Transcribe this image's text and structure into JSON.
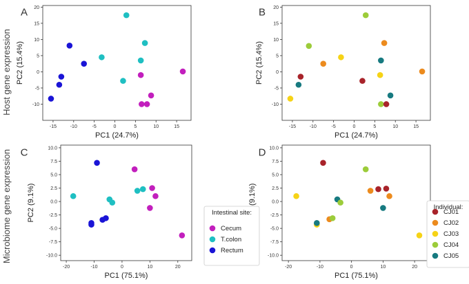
{
  "row_labels": [
    "Host gene expression",
    "Microbiome gene expression"
  ],
  "legends": {
    "site": {
      "title": "Intestinal site:",
      "entries": [
        {
          "name": "Cecum",
          "color": "#c21fbd"
        },
        {
          "name": "T.colon",
          "color": "#1fbfc2"
        },
        {
          "name": "Rectum",
          "color": "#1a14d6"
        }
      ]
    },
    "individual": {
      "title": "Individual:",
      "entries": [
        {
          "name": "CJ01",
          "color": "#a8232a"
        },
        {
          "name": "CJ02",
          "color": "#ec8b1e"
        },
        {
          "name": "CJ03",
          "color": "#f6d316"
        },
        {
          "name": "CJ04",
          "color": "#9ccc3a"
        },
        {
          "name": "CJ05",
          "color": "#177a80"
        }
      ]
    }
  },
  "chart_data": [
    {
      "panel": "A",
      "type": "scatter",
      "color_by": "site",
      "xlabel": "PC1 (24.7%)",
      "ylabel": "PC2 (15.4%)",
      "xlim": [
        -17.5,
        18.5
      ],
      "ylim": [
        -15,
        20.5
      ],
      "xticks": [
        -15,
        -10,
        -5,
        0,
        5,
        10,
        15
      ],
      "yticks": [
        -10,
        -5,
        0,
        5,
        10,
        15,
        20
      ],
      "points": [
        {
          "x": 2.8,
          "y": 17.5,
          "g": "T.colon"
        },
        {
          "x": 7.3,
          "y": 8.9,
          "g": "T.colon"
        },
        {
          "x": -3.2,
          "y": 4.5,
          "g": "T.colon"
        },
        {
          "x": 6.3,
          "y": 3.5,
          "g": "T.colon"
        },
        {
          "x": 2.0,
          "y": -2.8,
          "g": "T.colon"
        },
        {
          "x": -11.0,
          "y": 8.1,
          "g": "Rectum"
        },
        {
          "x": -7.5,
          "y": 2.5,
          "g": "Rectum"
        },
        {
          "x": -13.0,
          "y": -1.5,
          "g": "Rectum"
        },
        {
          "x": -13.5,
          "y": -4.0,
          "g": "Rectum"
        },
        {
          "x": -15.5,
          "y": -8.3,
          "g": "Rectum"
        },
        {
          "x": 16.5,
          "y": 0.1,
          "g": "Cecum"
        },
        {
          "x": 6.3,
          "y": -1.0,
          "g": "Cecum"
        },
        {
          "x": 8.8,
          "y": -7.3,
          "g": "Cecum"
        },
        {
          "x": 6.5,
          "y": -10.0,
          "g": "Cecum"
        },
        {
          "x": 7.8,
          "y": -10.0,
          "g": "Cecum"
        }
      ]
    },
    {
      "panel": "B",
      "type": "scatter",
      "color_by": "individual",
      "xlabel": "PC1 (24.7%)",
      "ylabel": "PC2 (15.4%)",
      "xlim": [
        -17.5,
        18.5
      ],
      "ylim": [
        -15,
        20.5
      ],
      "xticks": [
        -15,
        -10,
        -5,
        0,
        5,
        10,
        15
      ],
      "yticks": [
        -10,
        -5,
        0,
        5,
        10,
        15,
        20
      ],
      "points": [
        {
          "x": 2.8,
          "y": 17.5,
          "g": "CJ04"
        },
        {
          "x": -11.0,
          "y": 8.0,
          "g": "CJ04"
        },
        {
          "x": 7.3,
          "y": 8.9,
          "g": "CJ02"
        },
        {
          "x": -3.2,
          "y": 4.5,
          "g": "CJ03"
        },
        {
          "x": -7.5,
          "y": 2.5,
          "g": "CJ02"
        },
        {
          "x": 6.5,
          "y": 3.5,
          "g": "CJ05"
        },
        {
          "x": 16.5,
          "y": 0.1,
          "g": "CJ02"
        },
        {
          "x": 6.3,
          "y": -1.0,
          "g": "CJ03"
        },
        {
          "x": -13.0,
          "y": -1.5,
          "g": "CJ01"
        },
        {
          "x": 2.0,
          "y": -2.8,
          "g": "CJ01"
        },
        {
          "x": -13.5,
          "y": -4.0,
          "g": "CJ05"
        },
        {
          "x": 8.8,
          "y": -7.3,
          "g": "CJ05"
        },
        {
          "x": -15.5,
          "y": -8.3,
          "g": "CJ03"
        },
        {
          "x": 6.5,
          "y": -10.0,
          "g": "CJ04"
        },
        {
          "x": 7.8,
          "y": -10.0,
          "g": "CJ01"
        }
      ]
    },
    {
      "panel": "C",
      "type": "scatter",
      "color_by": "site",
      "xlabel": "PC1 (75.1%)",
      "ylabel": "PC2 (9.1%)",
      "xlim": [
        -22,
        25
      ],
      "ylim": [
        -11,
        10.5
      ],
      "xticks": [
        -20,
        -10,
        0,
        10,
        20
      ],
      "yticks": [
        -10.0,
        -7.5,
        -5.0,
        -2.5,
        0.0,
        2.5,
        5.0,
        7.5,
        10.0
      ],
      "ytick_labels": [
        "-10.0",
        "-7.5",
        "-5.0",
        "-2.5",
        "0.0",
        "2.5",
        "5.0",
        "7.5",
        "10.0"
      ],
      "points": [
        {
          "x": -9.0,
          "y": 7.2,
          "g": "Rectum"
        },
        {
          "x": 4.5,
          "y": 6.0,
          "g": "Cecum"
        },
        {
          "x": 10.8,
          "y": 2.5,
          "g": "Cecum"
        },
        {
          "x": 12.0,
          "y": 1.0,
          "g": "Cecum"
        },
        {
          "x": 10.0,
          "y": -1.2,
          "g": "Cecum"
        },
        {
          "x": 21.5,
          "y": -6.3,
          "g": "Cecum"
        },
        {
          "x": -17.5,
          "y": 1.0,
          "g": "T.colon"
        },
        {
          "x": 5.5,
          "y": 2.0,
          "g": "T.colon"
        },
        {
          "x": 7.5,
          "y": 2.3,
          "g": "T.colon"
        },
        {
          "x": -4.5,
          "y": 0.4,
          "g": "T.colon"
        },
        {
          "x": -3.5,
          "y": -0.2,
          "g": "T.colon"
        },
        {
          "x": -11.0,
          "y": -4.0,
          "g": "Rectum"
        },
        {
          "x": -11.0,
          "y": -4.3,
          "g": "Rectum"
        },
        {
          "x": -7.0,
          "y": -3.4,
          "g": "Rectum"
        },
        {
          "x": -5.8,
          "y": -3.1,
          "g": "Rectum"
        }
      ]
    },
    {
      "panel": "D",
      "type": "scatter",
      "color_by": "individual",
      "xlabel": "PC1 (75.1%)",
      "ylabel": "PC2 (9.1%)",
      "xlim": [
        -22,
        25
      ],
      "ylim": [
        -11,
        10.5
      ],
      "xticks": [
        -20,
        -10,
        0,
        10,
        20
      ],
      "yticks": [
        -10.0,
        -7.5,
        -5.0,
        -2.5,
        0.0,
        2.5,
        5.0,
        7.5,
        10.0
      ],
      "ytick_labels": [
        "-10.0",
        "-7.5",
        "-5.0",
        "-2.5",
        "0.0",
        "2.5",
        "5.0",
        "7.5",
        "10.0"
      ],
      "points": [
        {
          "x": -9.0,
          "y": 7.2,
          "g": "CJ01"
        },
        {
          "x": 4.5,
          "y": 6.0,
          "g": "CJ04"
        },
        {
          "x": 8.5,
          "y": 2.3,
          "g": "CJ01"
        },
        {
          "x": 11.0,
          "y": 2.4,
          "g": "CJ01"
        },
        {
          "x": 6.0,
          "y": 2.0,
          "g": "CJ02"
        },
        {
          "x": 12.0,
          "y": 1.0,
          "g": "CJ02"
        },
        {
          "x": -17.5,
          "y": 1.0,
          "g": "CJ03"
        },
        {
          "x": -4.5,
          "y": 0.4,
          "g": "CJ05"
        },
        {
          "x": -3.5,
          "y": -0.2,
          "g": "CJ04"
        },
        {
          "x": 10.0,
          "y": -1.2,
          "g": "CJ05"
        },
        {
          "x": -7.0,
          "y": -3.3,
          "g": "CJ02"
        },
        {
          "x": -6.0,
          "y": -3.1,
          "g": "CJ04"
        },
        {
          "x": -11.0,
          "y": -4.3,
          "g": "CJ03"
        },
        {
          "x": -11.0,
          "y": -4.0,
          "g": "CJ05"
        },
        {
          "x": 21.5,
          "y": -6.3,
          "g": "CJ03"
        }
      ]
    }
  ]
}
